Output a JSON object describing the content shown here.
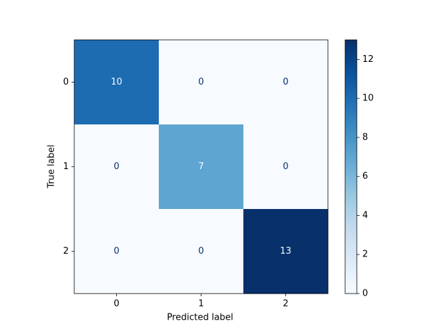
{
  "chart_data": {
    "type": "heatmap",
    "x_label": "Predicted label",
    "y_label": "True label",
    "x_categories": [
      "0",
      "1",
      "2"
    ],
    "y_categories": [
      "0",
      "1",
      "2"
    ],
    "values": [
      [
        10,
        0,
        0
      ],
      [
        0,
        7,
        0
      ],
      [
        0,
        0,
        13
      ]
    ],
    "colormap": "Blues",
    "colorbar_lim": [
      0,
      13
    ],
    "colorbar_ticks": [
      0,
      2,
      4,
      6,
      8,
      10,
      12
    ]
  }
}
